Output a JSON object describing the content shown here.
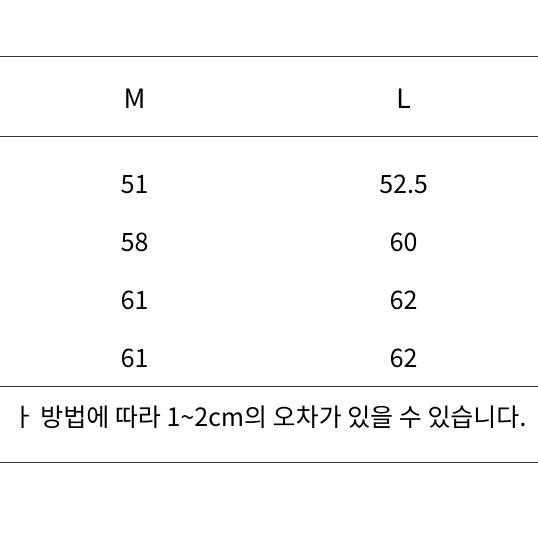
{
  "table": {
    "type": "table",
    "columns": [
      "M",
      "L"
    ],
    "rows": [
      [
        "51",
        "52.5"
      ],
      [
        "58",
        "60"
      ],
      [
        "61",
        "62"
      ],
      [
        "61",
        "62"
      ]
    ],
    "column_widths": [
      0.5,
      0.5
    ],
    "alignment": "center",
    "border_color": "#333333",
    "background_color": "#ffffff",
    "header_fontsize": 27,
    "body_fontsize": 25,
    "note_fontsize": 21,
    "text_color": "#000000"
  },
  "footnote": "ㅏ 방법에 따라 1~2cm의 오차가 있을 수 있습니다."
}
